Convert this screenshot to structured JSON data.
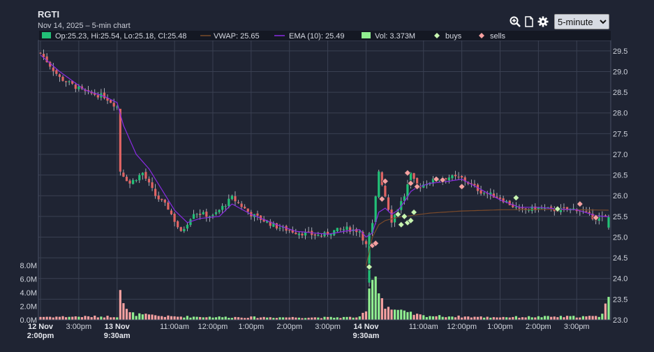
{
  "header": {
    "ticker": "RGTI",
    "subtitle": "Nov 14, 2025 – 5-min chart"
  },
  "toolbar": {
    "interval_value": "5-minute",
    "interval_options": [
      "5-minute"
    ],
    "icons": [
      "zoom-in-icon",
      "document-icon",
      "gear-icon"
    ]
  },
  "legend": {
    "ohlc": "Op:25.23, Hi:25.54, Lo:25.18, Cl:25.48",
    "vwap": "VWAP: 25.65",
    "ema": "EMA (10): 25.49",
    "vol": "Vol: 3.373M",
    "buys": "buys",
    "sells": "sells"
  },
  "colors": {
    "up": "#22c077",
    "down": "#e06464",
    "ema": "#8a2be2",
    "vwap": "#7a4a2a",
    "vol_up": "#90ee90",
    "vol_down": "#f7a1a1",
    "buy_marker": "#c8f5b0",
    "sell_marker": "#f5a0a0",
    "grid": "#3a4052",
    "background": "#1f2433"
  },
  "chart_data": {
    "type": "candlestick",
    "ticker": "RGTI",
    "interval": "5-minute",
    "price_axis": {
      "ticks": [
        "29.5",
        "29.0",
        "28.5",
        "28.0",
        "27.5",
        "27.0",
        "26.5",
        "26.0",
        "25.5",
        "25.0",
        "24.5",
        "24.0",
        "23.5",
        "23.0"
      ],
      "ylim": [
        23.0,
        29.75
      ]
    },
    "volume_axis": {
      "ticks": [
        "8.0M",
        "6.0M",
        "4.0M",
        "2.0M",
        "0.0M"
      ],
      "ylim_millions": [
        0,
        8.4
      ]
    },
    "x_ticks": [
      {
        "label": "12 Nov",
        "label2": "2:00pm",
        "bold": true,
        "bar": 0
      },
      {
        "label": "3:00pm",
        "bar": 12
      },
      {
        "label": "13 Nov",
        "label2": "9:30am",
        "bold": true,
        "bar": 24
      },
      {
        "label": "11:00am",
        "bar": 42
      },
      {
        "label": "12:00pm",
        "bar": 54
      },
      {
        "label": "1:00pm",
        "bar": 66
      },
      {
        "label": "2:00pm",
        "bar": 78
      },
      {
        "label": "3:00pm",
        "bar": 90
      },
      {
        "label": "14 Nov",
        "label2": "9:30am",
        "bold": true,
        "bar": 102
      },
      {
        "label": "11:00am",
        "bar": 120
      },
      {
        "label": "12:00pm",
        "bar": 132
      },
      {
        "label": "1:00pm",
        "bar": 144
      },
      {
        "label": "2:00pm",
        "bar": 156
      },
      {
        "label": "3:00pm",
        "bar": 168
      }
    ],
    "price_path": [
      [
        0,
        29.45
      ],
      [
        6,
        28.85
      ],
      [
        14,
        28.5
      ],
      [
        20,
        28.4
      ],
      [
        24,
        28.15
      ],
      [
        25,
        26.6
      ],
      [
        28,
        26.3
      ],
      [
        32,
        26.55
      ],
      [
        36,
        26.0
      ],
      [
        40,
        25.7
      ],
      [
        44,
        25.1
      ],
      [
        48,
        25.6
      ],
      [
        54,
        25.5
      ],
      [
        60,
        25.95
      ],
      [
        66,
        25.55
      ],
      [
        74,
        25.25
      ],
      [
        80,
        25.12
      ],
      [
        88,
        25.03
      ],
      [
        92,
        25.15
      ],
      [
        96,
        25.2
      ],
      [
        100,
        25.15
      ],
      [
        102,
        24.8
      ],
      [
        104,
        25.3
      ],
      [
        106,
        26.6
      ],
      [
        108,
        26.0
      ],
      [
        110,
        25.4
      ],
      [
        112,
        25.7
      ],
      [
        114,
        26.0
      ],
      [
        116,
        26.5
      ],
      [
        118,
        26.2
      ],
      [
        122,
        26.35
      ],
      [
        128,
        26.45
      ],
      [
        132,
        26.42
      ],
      [
        138,
        26.1
      ],
      [
        144,
        25.95
      ],
      [
        150,
        25.65
      ],
      [
        156,
        25.7
      ],
      [
        162,
        25.65
      ],
      [
        168,
        25.68
      ],
      [
        174,
        25.45
      ],
      [
        178,
        25.5
      ]
    ],
    "ema_path": [
      [
        0,
        29.4
      ],
      [
        6,
        29.0
      ],
      [
        14,
        28.55
      ],
      [
        20,
        28.4
      ],
      [
        24,
        28.25
      ],
      [
        26,
        27.7
      ],
      [
        30,
        27.0
      ],
      [
        34,
        26.65
      ],
      [
        38,
        26.15
      ],
      [
        42,
        25.65
      ],
      [
        46,
        25.35
      ],
      [
        50,
        25.45
      ],
      [
        56,
        25.5
      ],
      [
        60,
        25.8
      ],
      [
        66,
        25.55
      ],
      [
        74,
        25.3
      ],
      [
        80,
        25.14
      ],
      [
        90,
        25.07
      ],
      [
        96,
        25.15
      ],
      [
        100,
        25.18
      ],
      [
        102,
        25.0
      ],
      [
        104,
        25.1
      ],
      [
        106,
        25.6
      ],
      [
        108,
        25.7
      ],
      [
        110,
        25.55
      ],
      [
        112,
        25.65
      ],
      [
        114,
        25.85
      ],
      [
        116,
        26.1
      ],
      [
        118,
        26.2
      ],
      [
        122,
        26.3
      ],
      [
        128,
        26.35
      ],
      [
        132,
        26.4
      ],
      [
        138,
        26.15
      ],
      [
        144,
        25.9
      ],
      [
        150,
        25.72
      ],
      [
        156,
        25.72
      ],
      [
        162,
        25.68
      ],
      [
        168,
        25.66
      ],
      [
        174,
        25.52
      ],
      [
        178,
        25.49
      ]
    ],
    "vwap_path": [
      [
        102,
        24.3
      ],
      [
        104,
        25.0
      ],
      [
        106,
        25.3
      ],
      [
        108,
        25.4
      ],
      [
        112,
        25.48
      ],
      [
        116,
        25.52
      ],
      [
        122,
        25.58
      ],
      [
        132,
        25.63
      ],
      [
        144,
        25.66
      ],
      [
        160,
        25.67
      ],
      [
        178,
        25.65
      ]
    ],
    "volume_path": [
      [
        0,
        0.45
      ],
      [
        24,
        0.5
      ],
      [
        25,
        5.6
      ],
      [
        26,
        2.6
      ],
      [
        27,
        1.4
      ],
      [
        28,
        1.0
      ],
      [
        30,
        0.8
      ],
      [
        40,
        0.5
      ],
      [
        60,
        0.4
      ],
      [
        90,
        0.35
      ],
      [
        100,
        0.4
      ],
      [
        102,
        1.2
      ],
      [
        103,
        4.0
      ],
      [
        104,
        8.1
      ],
      [
        105,
        6.6
      ],
      [
        106,
        4.6
      ],
      [
        107,
        3.2
      ],
      [
        108,
        2.2
      ],
      [
        110,
        1.6
      ],
      [
        114,
        1.1
      ],
      [
        120,
        0.6
      ],
      [
        140,
        0.4
      ],
      [
        175,
        0.5
      ],
      [
        176,
        1.2
      ],
      [
        178,
        3.37
      ]
    ],
    "buys": [
      [
        103,
        24.28
      ],
      [
        112,
        25.55
      ],
      [
        113,
        25.3
      ],
      [
        114,
        25.5
      ],
      [
        115,
        25.35
      ],
      [
        116,
        25.4
      ],
      [
        117,
        25.6
      ],
      [
        149,
        25.95
      ],
      [
        162,
        25.68
      ]
    ],
    "sells": [
      [
        104,
        24.8
      ],
      [
        105,
        24.85
      ],
      [
        107,
        25.92
      ],
      [
        108,
        26.35
      ],
      [
        115,
        26.55
      ],
      [
        116,
        26.3
      ],
      [
        118,
        26.22
      ],
      [
        124,
        26.4
      ],
      [
        126,
        26.38
      ],
      [
        132,
        26.22
      ],
      [
        169,
        25.8
      ],
      [
        174,
        25.47
      ]
    ],
    "last_bar": {
      "open": 25.23,
      "high": 25.54,
      "low": 25.18,
      "close": 25.48,
      "volume_millions": 3.373
    }
  }
}
